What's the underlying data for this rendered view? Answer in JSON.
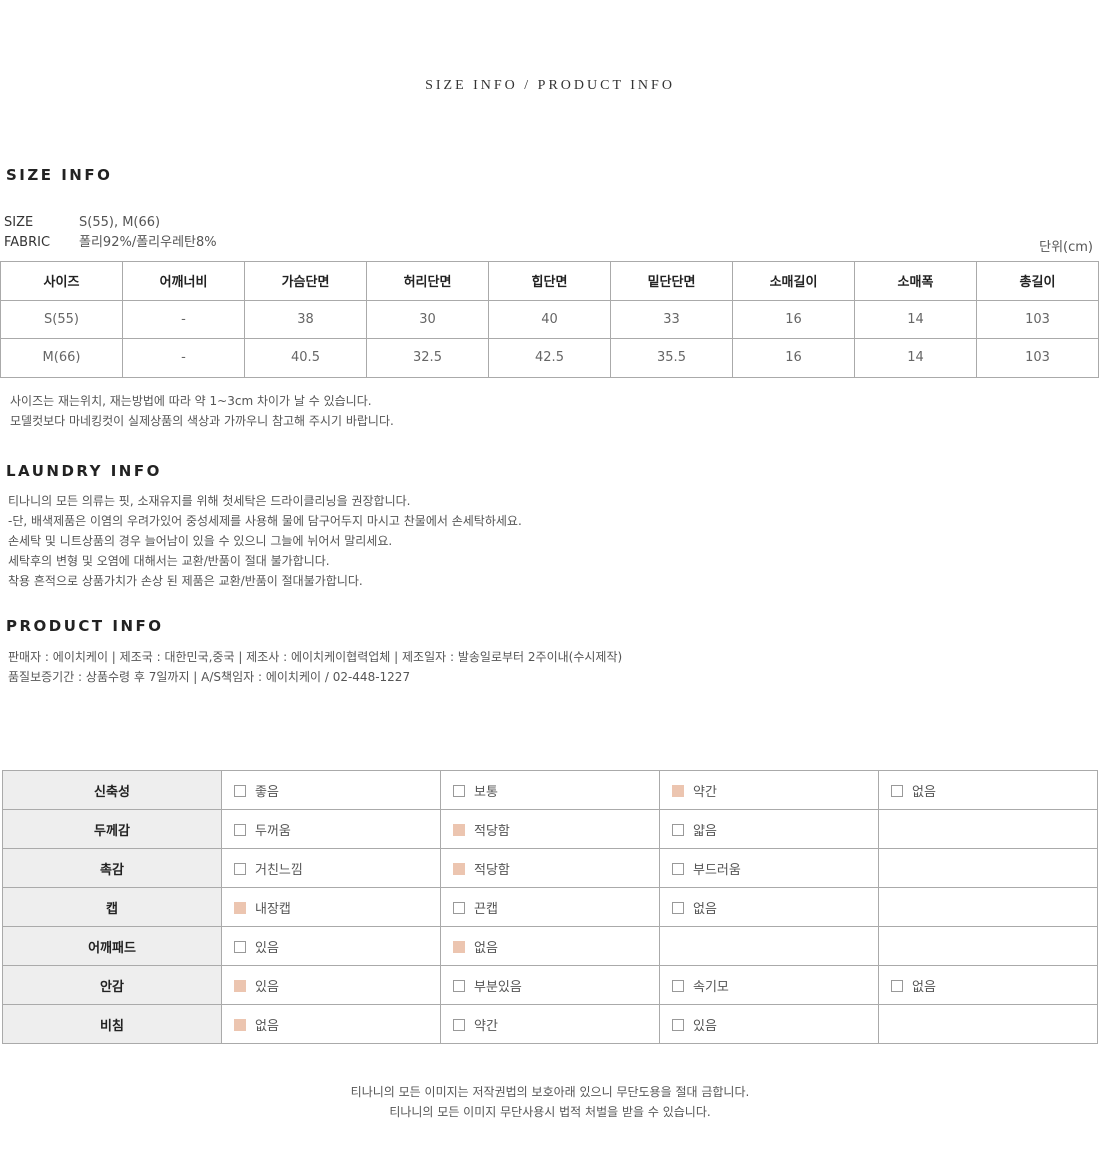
{
  "top_title": "SIZE INFO / PRODUCT INFO",
  "size_info": {
    "heading": "SIZE INFO",
    "size_label": "SIZE",
    "size_value": "S(55), M(66)",
    "fabric_label": "FABRIC",
    "fabric_value": "폴리92%/폴리우레탄8%",
    "unit": "단위(cm)",
    "headers": [
      "사이즈",
      "어깨너비",
      "가슴단면",
      "허리단면",
      "힙단면",
      "밑단단면",
      "소매길이",
      "소매폭",
      "총길이"
    ],
    "rows": [
      [
        "S(55)",
        "-",
        "38",
        "30",
        "40",
        "33",
        "16",
        "14",
        "103"
      ],
      [
        "M(66)",
        "-",
        "40.5",
        "32.5",
        "42.5",
        "35.5",
        "16",
        "14",
        "103"
      ]
    ],
    "notes": [
      "사이즈는 재는위치, 재는방법에 따라 약 1~3cm 차이가 날 수 있습니다.",
      "모델컷보다 마네킹컷이 실제상품의 색상과 가까우니 참고해 주시기 바랍니다."
    ]
  },
  "laundry": {
    "heading": "LAUNDRY INFO",
    "lines": [
      "티나니의 모든 의류는 핏, 소재유지를 위해 첫세탁은 드라이클리닝을 권장합니다.",
      "-단, 배색제품은 이염의 우려가있어 중성세제를 사용해 물에 담구어두지 마시고 찬물에서 손세탁하세요.",
      "손세탁 및 니트상품의 경우 늘어남이 있을 수 있으니 그늘에 뉘어서 말리세요.",
      "세탁후의 변형 및 오염에 대해서는 교환/반품이 절대 불가합니다.",
      "착용 흔적으로 상품가치가 손상 된 제품은 교환/반품이 절대불가합니다."
    ]
  },
  "product": {
    "heading": "PRODUCT INFO",
    "lines": [
      "판매자 : 에이치케이 | 제조국 : 대한민국,중국 | 제조사 : 에이치케이협력업체 | 제조일자 : 발송일로부터 2주이내(수시제작)",
      "품질보증기간 : 상품수령 후 7일까지 | A/S책임자 : 에이치케이 / 02-448-1227"
    ]
  },
  "check_color": "#ecc5b0",
  "attributes": [
    {
      "label": "신축성",
      "options": [
        {
          "t": "좋음",
          "on": false
        },
        {
          "t": "보통",
          "on": false
        },
        {
          "t": "약간",
          "on": true
        },
        {
          "t": "없음",
          "on": false
        }
      ]
    },
    {
      "label": "두께감",
      "options": [
        {
          "t": "두꺼움",
          "on": false
        },
        {
          "t": "적당함",
          "on": true
        },
        {
          "t": "얇음",
          "on": false
        }
      ]
    },
    {
      "label": "촉감",
      "options": [
        {
          "t": "거친느낌",
          "on": false
        },
        {
          "t": "적당함",
          "on": true
        },
        {
          "t": "부드러움",
          "on": false
        }
      ]
    },
    {
      "label": "캡",
      "options": [
        {
          "t": "내장캡",
          "on": true
        },
        {
          "t": "끈캡",
          "on": false
        },
        {
          "t": "없음",
          "on": false
        }
      ]
    },
    {
      "label": "어깨패드",
      "options": [
        {
          "t": "있음",
          "on": false
        },
        {
          "t": "없음",
          "on": true
        }
      ]
    },
    {
      "label": "안감",
      "options": [
        {
          "t": "있음",
          "on": true
        },
        {
          "t": "부분있음",
          "on": false
        },
        {
          "t": "속기모",
          "on": false
        },
        {
          "t": "없음",
          "on": false
        }
      ]
    },
    {
      "label": "비침",
      "options": [
        {
          "t": "없음",
          "on": true
        },
        {
          "t": "약간",
          "on": false
        },
        {
          "t": "있음",
          "on": false
        }
      ]
    }
  ],
  "footer": [
    "티나니의 모든 이미지는 저작권법의 보호아래 있으니 무단도용을 절대 금합니다.",
    "티나니의 모든 이미지 무단사용시 법적 처벌을 받을 수 있습니다."
  ]
}
